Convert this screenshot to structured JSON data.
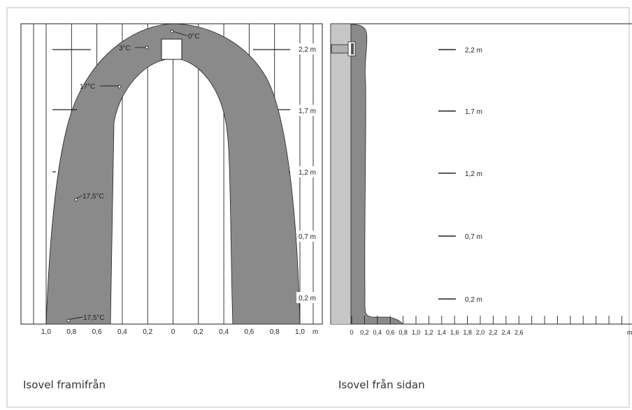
{
  "front": {
    "caption": "Isovel framifrån",
    "x_ticks": [
      "1,0",
      "0,8",
      "0,6",
      "0,4",
      "0,2",
      "0",
      "0,2",
      "0,4",
      "0,6",
      "0,8",
      "1,0"
    ],
    "x_unit": "m",
    "heights": [
      "2,2 m",
      "1,7 m",
      "1,2 m",
      "0,7 m",
      "0,2 m"
    ],
    "temps": [
      "0°C",
      "3°C",
      "17°C",
      "17,5°C",
      "17,5°C"
    ]
  },
  "side": {
    "caption": "Isovel från sidan",
    "x_ticks": [
      "0",
      "0,2",
      "0,4",
      "0,6",
      "0,8",
      "1,0",
      "1,2",
      "1,4",
      "1,6",
      "1,8",
      "2,0",
      "2,2",
      "2,4",
      "2,6"
    ],
    "x_unit": "m",
    "heights": [
      "2,2 m",
      "1,7 m",
      "1,2 m",
      "0,7 m",
      "0,2 m"
    ]
  },
  "colors": {
    "isovel": "#8a8a8a",
    "wall": "#c6c6c6",
    "border": "#d0d0d0",
    "line": "#222222"
  }
}
